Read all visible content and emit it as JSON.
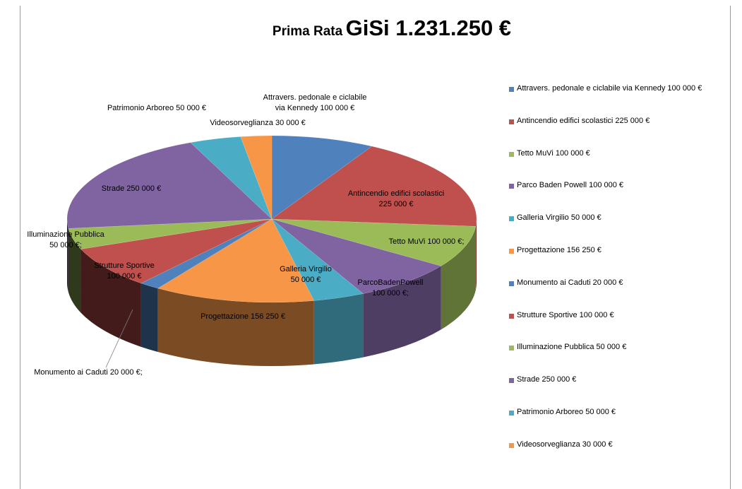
{
  "chart_data": {
    "type": "pie",
    "title_small": "Prima Rata",
    "title_big": "GiSi 1.231.250 €",
    "categories": [
      "Attravers. pedonale e ciclabile via Kennedy 100 000 €",
      "Antincendio edifici scolastici 225 000 €",
      "Tetto  MuVi 100 000 €",
      "Parco Baden Powell 100 000 €",
      "Galleria Virgilio 50 000 €",
      "Progettazione 156 250 €",
      "Monumento  ai Caduti 20 000 €",
      "Strutture Sportive 100 000 €",
      "Illuminazione Pubblica 50 000 €",
      "Strade 250 000 €",
      "Patrimonio Arboreo 50 000 €",
      "Videosorveglianza 30 000 €"
    ],
    "values": [
      100000,
      225000,
      100000,
      100000,
      50000,
      156250,
      20000,
      100000,
      50000,
      250000,
      50000,
      30000
    ],
    "colors": [
      "#4F81BD",
      "#C0504D",
      "#9BBB59",
      "#8064A2",
      "#4BACC6",
      "#F79646",
      "#4F81BD",
      "#C0504D",
      "#9BBB59",
      "#8064A2",
      "#4BACC6",
      "#F79646"
    ],
    "data_labels": [
      [
        "Attravers. pedonale e ciclabile",
        "via Kennedy 100 000 €"
      ],
      [
        "Antincendio edifici scolastici",
        "225 000 €"
      ],
      [
        "Tetto  MuVi 100 000 €;"
      ],
      [
        "ParcoBadenPowell",
        "100 000 €;"
      ],
      [
        "Galleria Virgilio",
        "50 000 €"
      ],
      [
        "Progettazione 156 250 €"
      ],
      [
        "Monumento  ai Caduti 20 000 €;"
      ],
      [
        "Strutture Sportive",
        "100 000 €"
      ],
      [
        "Illuminazione Pubblica",
        "50 000 €;"
      ],
      [
        "Strade 250 000 €"
      ],
      [
        "Patrimonio Arboreo 50 000 €"
      ],
      [
        "Videosorveglianza 30 000 €"
      ]
    ],
    "legend_position": "right",
    "style": "3d"
  }
}
